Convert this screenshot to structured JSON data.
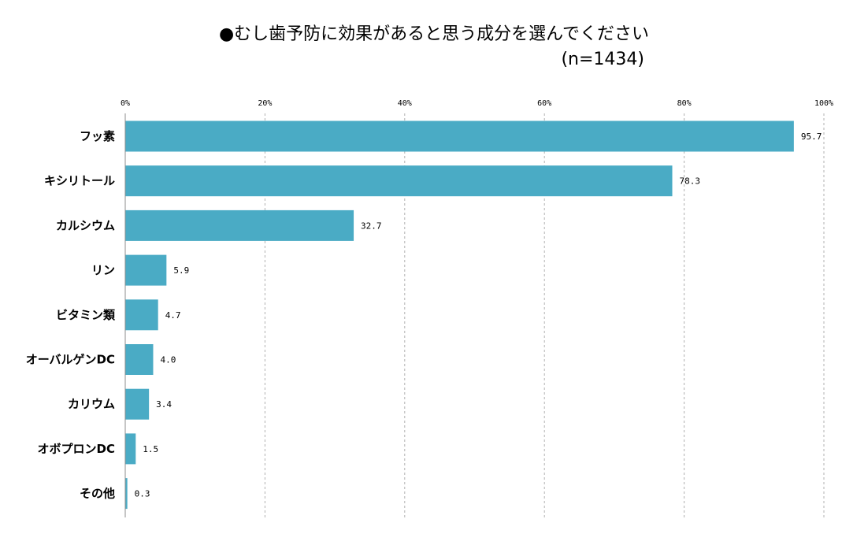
{
  "chart_data": {
    "type": "bar",
    "orientation": "horizontal",
    "title": "●むし歯予防に効果があると思う成分を選んでください",
    "subtitle": "(n=1434)",
    "categories": [
      "フッ素",
      "キシリトール",
      "カルシウム",
      "リン",
      "ビタミン類",
      "オーバルゲンDC",
      "カリウム",
      "オボプロンDC",
      "その他"
    ],
    "values": [
      95.7,
      78.3,
      32.7,
      5.9,
      4.7,
      4.0,
      3.4,
      1.5,
      0.3
    ],
    "value_labels": [
      "95.7",
      "78.3",
      "32.7",
      "5.9",
      "4.7",
      "4.0",
      "3.4",
      "1.5",
      "0.3"
    ],
    "xlim": [
      0,
      100
    ],
    "xticks": [
      0,
      20,
      40,
      60,
      80,
      100
    ],
    "xtick_labels": [
      "0%",
      "20%",
      "40%",
      "60%",
      "80%",
      "100%"
    ],
    "xlabel": "",
    "ylabel": "",
    "grid": "vertical-dashed",
    "bar_color": "#4aabc5",
    "grid_color": "#b0b0b0"
  }
}
